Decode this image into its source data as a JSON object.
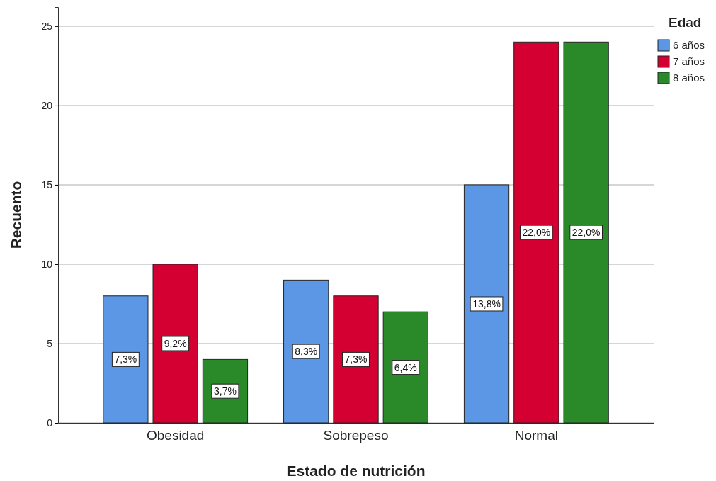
{
  "chart_data": {
    "type": "bar",
    "xlabel": "Estado de nutrición",
    "ylabel": "Recuento",
    "legend_title": "Edad",
    "categories": [
      "Obesidad",
      "Sobrepeso",
      "Normal"
    ],
    "series": [
      {
        "name": "6 años",
        "color": "#5b97e4",
        "values": [
          8,
          9,
          15
        ]
      },
      {
        "name": "7 años",
        "color": "#d50032",
        "values": [
          10,
          8,
          24
        ]
      },
      {
        "name": "8 años",
        "color": "#2a8a2a",
        "values": [
          4,
          7,
          24
        ]
      }
    ],
    "annotations": [
      "7,3%",
      "9,2%",
      "3,7%",
      "8,3%",
      "7,3%",
      "6,4%",
      "13,8%",
      "22,0%",
      "22,0%"
    ],
    "ylim": [
      0,
      26.2
    ],
    "yticks": [
      0,
      5,
      10,
      15,
      20,
      25
    ],
    "grid": "y",
    "legend": "top right"
  }
}
